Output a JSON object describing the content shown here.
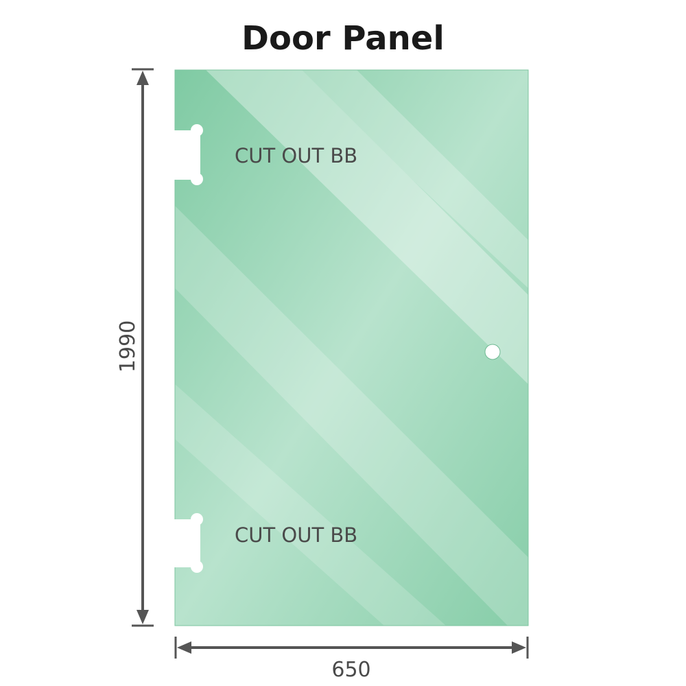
{
  "title": "Door Panel",
  "colors": {
    "glass": "#86cda8",
    "glass_light": "#bfe6d3",
    "dimension": "#555555"
  },
  "cutout_labels": [
    "CUT OUT BB",
    "CUT OUT BB"
  ],
  "dimensions": {
    "height": "1990",
    "width": "650"
  }
}
